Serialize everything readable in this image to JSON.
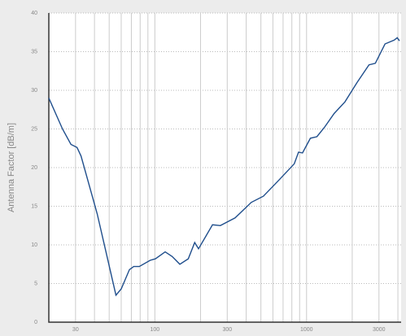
{
  "chart_data": {
    "type": "line",
    "ylabel": "Antenna Factor [dB/m]",
    "x": [
      20,
      24.6,
      28,
      30.7,
      32.6,
      41.7,
      55.4,
      60,
      68,
      72.6,
      79,
      93,
      101,
      117,
      130,
      146,
      166,
      183,
      194,
      240,
      270,
      338,
      432,
      520,
      665,
      752,
      830,
      885,
      940,
      1060,
      1170,
      1310,
      1520,
      1790,
      2150,
      2580,
      2840,
      3290,
      3780,
      3960,
      4100
    ],
    "y": [
      29,
      25,
      23,
      22.6,
      21.5,
      14,
      3.5,
      4.3,
      6.8,
      7.2,
      7.2,
      8.0,
      8.2,
      9.1,
      8.5,
      7.5,
      8.2,
      10.3,
      9.5,
      12.6,
      12.5,
      13.5,
      15.5,
      16.3,
      18.5,
      19.6,
      20.5,
      22.0,
      21.9,
      23.8,
      24.0,
      25.2,
      27.0,
      28.5,
      31,
      33.3,
      33.5,
      36,
      36.5,
      36.8,
      36.4
    ],
    "color": "#1f4e8c",
    "xscale": "log",
    "xlim": [
      20,
      4200
    ],
    "ylim": [
      0,
      40
    ],
    "xticks": [
      30,
      100,
      300,
      1000,
      3000
    ],
    "xgrid_minor": [
      40,
      50,
      60,
      70,
      80,
      90,
      200,
      400,
      500,
      600,
      700,
      800,
      900,
      2000,
      4000
    ],
    "yticks": [
      0,
      5,
      10,
      15,
      20,
      25,
      30,
      35,
      40
    ],
    "grid": true
  }
}
